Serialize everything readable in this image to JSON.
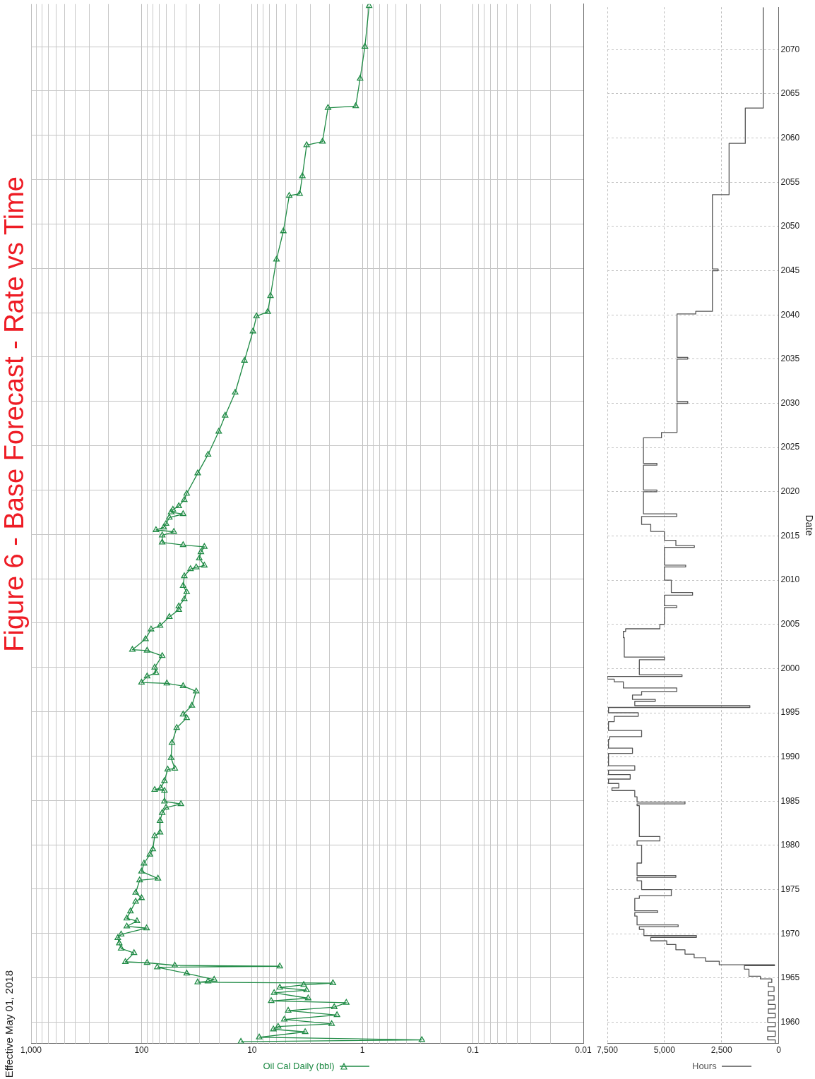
{
  "chart_data": [
    {
      "type": "line",
      "title": "Figure 6 - Base Forecast - Rate vs Time",
      "annotations": [
        "Effective May 01, 2018"
      ],
      "series": [
        {
          "name": "Oil Cal Daily (bbl)",
          "color": "#1e8a44",
          "x": [
            12.6,
            0.29,
            8.6,
            3.3,
            6.4,
            5.8,
            1.9,
            5.1,
            1.7,
            4.7,
            1.8,
            1.4,
            6.7,
            3.1,
            6.3,
            3.2,
            5.6,
            3.4,
            1.85,
            31,
            25,
            22,
            39,
            72,
            5.6,
            50,
            89,
            140,
            117,
            153,
            159,
            164,
            153,
            90,
            136,
            110,
            136,
            126,
            113,
            100,
            113,
            104,
            71,
            100,
            95,
            84,
            79,
            76,
            68,
            68,
            65,
            60,
            44,
            62,
            62,
            76,
            67,
            62,
            58,
            50,
            54,
            53,
            48,
            39,
            42,
            35,
            32,
            42,
            59,
            100,
            89,
            74,
            76,
            65,
            89,
            121,
            92,
            82,
            68,
            56,
            46,
            46,
            41,
            39,
            42,
            41,
            36,
            32,
            27,
            30,
            29,
            27,
            42,
            65,
            65,
            51,
            74,
            63,
            60,
            56,
            42,
            54,
            52,
            46,
            41,
            39,
            31,
            25,
            20,
            17.5,
            14.2,
            11.7,
            9.8,
            9.1,
            7.2,
            6.8,
            6.0,
            5.2,
            4.6,
            3.7,
            3.5,
            3.2,
            2.3,
            2.05,
            1.15,
            1.05,
            0.95,
            0.87
          ],
          "values": [
            1957.8,
            1958.0,
            1958.3,
            1958.9,
            1959.2,
            1959.5,
            1959.8,
            1960.3,
            1960.8,
            1961.3,
            1961.7,
            1962.2,
            1962.4,
            1962.7,
            1963.3,
            1963.6,
            1963.9,
            1964.2,
            1964.4,
            1964.5,
            1964.6,
            1964.8,
            1965.5,
            1966.2,
            1966.3,
            1966.4,
            1966.7,
            1966.8,
            1967.8,
            1968.3,
            1968.9,
            1969.5,
            1969.9,
            1970.6,
            1970.8,
            1971.4,
            1971.7,
            1972.5,
            1973.6,
            1974.0,
            1974.6,
            1976.0,
            1976.2,
            1977.0,
            1977.9,
            1978.9,
            1979.5,
            1981.0,
            1981.4,
            1982.7,
            1983.6,
            1984.2,
            1984.6,
            1984.9,
            1986.1,
            1986.2,
            1986.4,
            1987.2,
            1988.5,
            1988.6,
            1989.8,
            1991.5,
            1993.2,
            1994.3,
            1994.7,
            1995.7,
            1997.3,
            1997.9,
            1998.2,
            1998.3,
            1999.0,
            1999.4,
            2000.0,
            2001.3,
            2001.9,
            2002.0,
            2003.2,
            2004.3,
            2004.7,
            2005.7,
            2006.5,
            2006.9,
            2007.7,
            2008.5,
            2009.2,
            2010.3,
            2011.1,
            2011.3,
            2011.5,
            2012.3,
            2013.0,
            2013.6,
            2013.8,
            2014.1,
            2014.9,
            2015.3,
            2015.5,
            2015.8,
            2016.2,
            2016.9,
            2017.3,
            2017.5,
            2017.8,
            2018.2,
            2018.9,
            2019.6,
            2021.9,
            2024.0,
            2026.6,
            2028.4,
            2031.0,
            2034.6,
            2037.9,
            2039.6,
            2040.1,
            2041.9,
            2046.0,
            2049.2,
            2053.2,
            2053.4,
            2055.4,
            2058.9,
            2059.3,
            2063.1,
            2063.3,
            2066.4,
            2070.0,
            2074.6
          ]
        }
      ],
      "log": "x",
      "xlim": [
        1000,
        0.01
      ],
      "xticks": [
        {
          "value": 1000,
          "label": "1,000"
        },
        100,
        10,
        1,
        0.1,
        0.01
      ],
      "ylim": [
        1957.6,
        2074.8
      ],
      "yticks": [
        1960,
        1965,
        1970,
        1975,
        1980,
        1985,
        1990,
        1995,
        2000,
        2005,
        2010,
        2015,
        2020,
        2025,
        2030,
        2035,
        2040,
        2045,
        2050,
        2055,
        2060,
        2065,
        2070
      ],
      "tick_labels": "x",
      "grid": true,
      "legend": "bottom",
      "marker": "triangle"
    },
    {
      "type": "step",
      "ylabel": "Date",
      "series": [
        {
          "name": "Hours",
          "color": "#555555",
          "x": [
            150,
            480,
            150,
            480,
            150,
            480,
            150,
            450,
            150,
            450,
            200,
            450,
            200,
            450,
            300,
            800,
            1300,
            1500,
            180,
            2600,
            3200,
            3700,
            4100,
            4500,
            4900,
            5600,
            3600,
            5900,
            6100,
            4400,
            6200,
            6300,
            5300,
            6300,
            6100,
            4700,
            6000,
            6200,
            4500,
            6200,
            6000,
            6200,
            5200,
            6100,
            6100,
            6200,
            4100,
            6200,
            6300,
            7300,
            7000,
            7450,
            6500,
            7450,
            6300,
            7450,
            7450,
            6400,
            7450,
            7400,
            6000,
            7450,
            7200,
            6150,
            7450,
            1260,
            6300,
            5400,
            6400,
            6000,
            4460,
            6800,
            7200,
            7500,
            4230,
            6100,
            6100,
            5000,
            6760,
            6760,
            6800,
            6700,
            5200,
            5000,
            4460,
            5000,
            3770,
            4700,
            5000,
            4070,
            5000,
            3690,
            4500,
            5000,
            5600,
            6000,
            4460,
            5920,
            5330,
            5920,
            5330,
            5920,
            5130,
            4450,
            3980,
            4450,
            3980,
            4450,
            3630,
            2900,
            2650,
            2900,
            2170,
            1460,
            670,
            670
          ],
          "values": [
            1957.6,
            1958.0,
            1958.4,
            1959.0,
            1959.5,
            1960.0,
            1960.5,
            1961.0,
            1961.5,
            1962.0,
            1962.5,
            1963.0,
            1963.5,
            1964.0,
            1964.5,
            1964.9,
            1965.2,
            1966.0,
            1966.4,
            1966.5,
            1966.9,
            1967.3,
            1967.7,
            1968.2,
            1968.8,
            1969.2,
            1969.6,
            1969.8,
            1970.5,
            1970.8,
            1971.0,
            1972.0,
            1972.4,
            1972.6,
            1974.0,
            1974.3,
            1975.0,
            1976.0,
            1976.4,
            1976.6,
            1978.0,
            1980.0,
            1980.5,
            1981.0,
            1983.0,
            1984.5,
            1984.7,
            1984.9,
            1985.5,
            1986.2,
            1986.5,
            1987.0,
            1987.5,
            1988.0,
            1988.5,
            1989.0,
            1990.0,
            1990.4,
            1991.0,
            1992.0,
            1992.3,
            1993.0,
            1994.0,
            1994.6,
            1995.0,
            1995.6,
            1995.8,
            1996.3,
            1996.5,
            1997.0,
            1997.4,
            1997.8,
            1998.5,
            1998.8,
            1999.1,
            1999.3,
            1999.5,
            2001.0,
            2001.3,
            2002.0,
            2003.5,
            2004.2,
            2004.5,
            2005.0,
            2006.9,
            2007.1,
            2008.3,
            2008.6,
            2010.0,
            2011.5,
            2011.7,
            2013.7,
            2013.9,
            2014.5,
            2015.5,
            2016.3,
            2017.2,
            2017.5,
            2020.0,
            2020.2,
            2023.0,
            2023.2,
            2026.1,
            2026.7,
            2030.0,
            2030.2,
            2035.0,
            2035.2,
            2040.1,
            2040.4,
            2045.0,
            2045.2,
            2053.6,
            2059.4,
            2063.4,
            2074.8
          ]
        }
      ],
      "xlim": [
        7500,
        0
      ],
      "xticks": [
        {
          "value": 7500,
          "label": "7,500"
        },
        {
          "value": 5000,
          "label": "5,000"
        },
        {
          "value": 2500,
          "label": "2,500"
        },
        0
      ],
      "ylim": [
        1957.6,
        2074.8
      ],
      "yticks": [
        1960,
        1965,
        1970,
        1975,
        1980,
        1985,
        1990,
        1995,
        2000,
        2005,
        2010,
        2015,
        2020,
        2025,
        2030,
        2035,
        2040,
        2045,
        2050,
        2055,
        2060,
        2065,
        2070
      ],
      "grid": true,
      "legend": "bottom"
    }
  ]
}
